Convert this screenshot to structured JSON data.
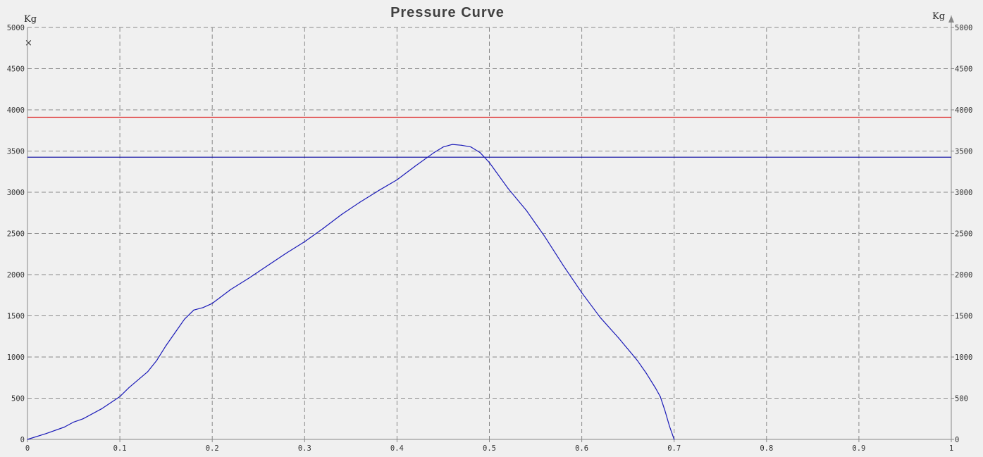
{
  "chart_data": {
    "type": "line",
    "title": "Pressure Curve",
    "y_unit_left": "Kg",
    "y_unit_right": "Kg",
    "xlim": [
      0,
      1
    ],
    "ylim": [
      0,
      5000
    ],
    "x_ticks": [
      "0",
      "0.1",
      "0.2",
      "0.3",
      "0.4",
      "0.5",
      "0.6",
      "0.7",
      "0.8",
      "0.9",
      "1"
    ],
    "y_ticks": [
      "0",
      "500",
      "1000",
      "1500",
      "2000",
      "2500",
      "3000",
      "3500",
      "4000",
      "4500",
      "5000"
    ],
    "grid": true,
    "reference_lines": [
      {
        "y": 3910,
        "color": "#dd2222"
      },
      {
        "y": 3425,
        "color": "#1a1aa6"
      }
    ],
    "series": [
      {
        "color": "#1a1ab8",
        "x": [
          0,
          0.02,
          0.04,
          0.05,
          0.06,
          0.08,
          0.1,
          0.11,
          0.13,
          0.14,
          0.15,
          0.16,
          0.17,
          0.18,
          0.19,
          0.2,
          0.22,
          0.24,
          0.26,
          0.28,
          0.3,
          0.32,
          0.34,
          0.36,
          0.38,
          0.4,
          0.42,
          0.44,
          0.45,
          0.46,
          0.47,
          0.48,
          0.49,
          0.5,
          0.52,
          0.54,
          0.56,
          0.58,
          0.6,
          0.62,
          0.64,
          0.66,
          0.67,
          0.68,
          0.685,
          0.69,
          0.695,
          0.7
        ],
        "y": [
          0,
          70,
          150,
          210,
          250,
          370,
          520,
          630,
          820,
          960,
          1140,
          1300,
          1460,
          1570,
          1600,
          1650,
          1820,
          1960,
          2110,
          2260,
          2400,
          2560,
          2730,
          2880,
          3020,
          3150,
          3320,
          3480,
          3550,
          3580,
          3570,
          3550,
          3480,
          3360,
          3050,
          2780,
          2460,
          2110,
          1780,
          1480,
          1230,
          960,
          800,
          620,
          520,
          350,
          160,
          0
        ]
      }
    ]
  },
  "ui": {
    "close_glyph": "×",
    "right_axis_arrow_icon": "arrow-up-icon"
  }
}
